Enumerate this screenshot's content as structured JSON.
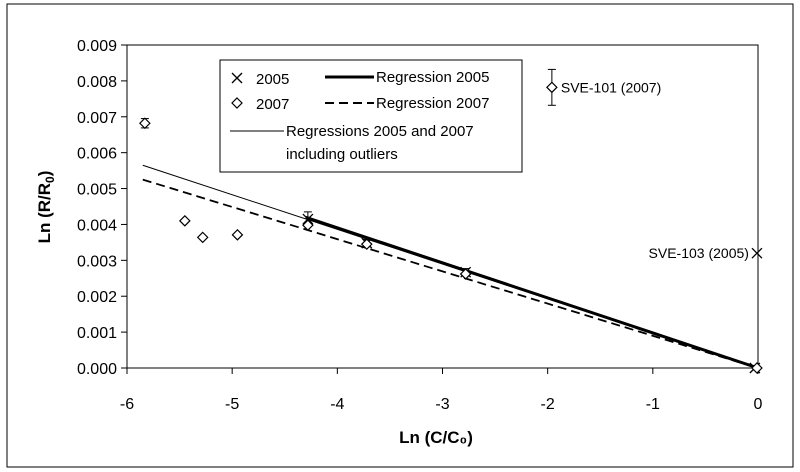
{
  "chart_data": {
    "type": "scatter",
    "xlabel": "Ln (C/C₀)",
    "ylabel_main": "Ln (R/R",
    "ylabel_sub": "0",
    "ylabel_tail": ")",
    "xlim": [
      -6,
      0
    ],
    "ylim": [
      0,
      0.009
    ],
    "x_ticks": [
      -6,
      -5,
      -4,
      -3,
      -2,
      -1,
      0
    ],
    "x_tick_labels": [
      "-6",
      "-5",
      "-4",
      "-3",
      "-2",
      "-1",
      "0"
    ],
    "y_ticks": [
      0,
      0.001,
      0.002,
      0.003,
      0.004,
      0.005,
      0.006,
      0.007,
      0.008,
      0.009
    ],
    "y_tick_labels": [
      "0.000",
      "0.001",
      "0.002",
      "0.003",
      "0.004",
      "0.005",
      "0.006",
      "0.007",
      "0.008",
      "0.009"
    ],
    "grid": false,
    "legend_position": "top-center",
    "series": [
      {
        "name": "2005",
        "marker": "x",
        "points": [
          {
            "x": -4.28,
            "y": 0.00415,
            "err": 0.0002
          },
          {
            "x": -3.72,
            "y": 0.00348,
            "err": 0.0001
          },
          {
            "x": -2.78,
            "y": 0.00267,
            "err": 0.0001
          },
          {
            "x": -0.03,
            "y": 0.0,
            "err": 0
          },
          {
            "x": -0.01,
            "y": 0.0032,
            "err": 0
          }
        ]
      },
      {
        "name": "2007",
        "marker": "diamond",
        "points": [
          {
            "x": -5.83,
            "y": 0.00682,
            "err": 0.00013
          },
          {
            "x": -5.45,
            "y": 0.0041,
            "err": 0
          },
          {
            "x": -5.28,
            "y": 0.00364,
            "err": 0
          },
          {
            "x": -4.95,
            "y": 0.00371,
            "err": 0
          },
          {
            "x": -4.28,
            "y": 0.00398,
            "err": 0
          },
          {
            "x": -3.72,
            "y": 0.00345,
            "err": 0
          },
          {
            "x": -2.78,
            "y": 0.00262,
            "err": 0
          },
          {
            "x": -0.01,
            "y": 0.0,
            "err": 0
          },
          {
            "x": -1.96,
            "y": 0.00782,
            "err": 0.0005
          }
        ]
      }
    ],
    "lines": [
      {
        "name": "Regression 2005",
        "style": "thick-solid",
        "x": [
          -4.3,
          0
        ],
        "y": [
          0.0042,
          0.0
        ]
      },
      {
        "name": "Regression 2007",
        "style": "dashed",
        "x": [
          -5.85,
          0
        ],
        "y": [
          0.00525,
          0.0
        ]
      },
      {
        "name": "Regressions 2005 and 2007 including outliers",
        "style": "thin-solid",
        "x": [
          -5.85,
          0
        ],
        "y": [
          0.00565,
          0.0
        ]
      }
    ],
    "legend": {
      "items": [
        {
          "marker": "x",
          "label": "2005"
        },
        {
          "line": "thick-solid",
          "label": "Regression 2005"
        },
        {
          "marker": "diamond",
          "label": "2007"
        },
        {
          "line": "dashed",
          "label": "Regression 2007"
        },
        {
          "line": "thin-solid",
          "label_line1": "Regressions 2005 and 2007",
          "label_line2": "including outliers"
        }
      ]
    },
    "annotations": [
      {
        "text": "SVE-101 (2007)",
        "x": -1.96,
        "y": 0.00782
      },
      {
        "text": "SVE-103 (2005)",
        "x": -0.01,
        "y": 0.0032
      }
    ]
  }
}
